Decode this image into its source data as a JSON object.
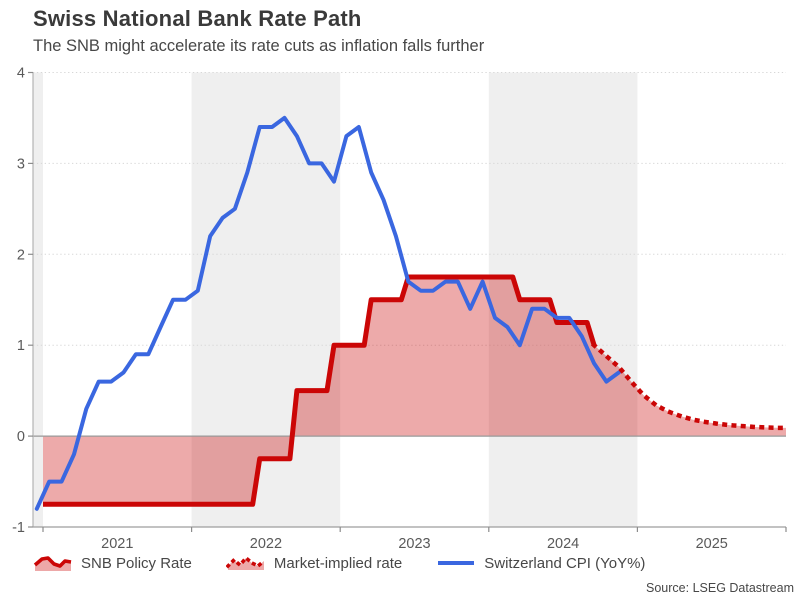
{
  "header": {
    "title": "Swiss National Bank Rate Path",
    "subtitle": "The SNB might accelerate its rate cuts as inflation falls further"
  },
  "source": "Source: LSEG Datastream",
  "colors": {
    "policy_red": "#cb0606",
    "fill_pink": "rgba(203,6,6,0.34)",
    "cpi_blue": "#3a67e0",
    "band_gray": "#efefef",
    "grid": "#d7d7d7",
    "zero_line": "#999999",
    "axis": "#b3b3b3",
    "tick": "#8c8c8c",
    "label": "#595959"
  },
  "chart_data": {
    "type": "line",
    "title": "Swiss National Bank Rate Path",
    "subtitle": "The SNB might accelerate its rate cuts as inflation falls further",
    "xlabel": "",
    "ylabel": "",
    "ylim": [
      -1,
      4
    ],
    "grid": "dotted horizontal",
    "legend_position": "bottom",
    "x_axis": {
      "labels": [
        "2021",
        "2022",
        "2023",
        "2024",
        "2025"
      ]
    },
    "y_axis": {
      "ticks": [
        4,
        3,
        2,
        1,
        0,
        -1
      ]
    },
    "shaded_bands": [
      [
        "2020-12",
        "2021-01"
      ],
      [
        "2022-01",
        "2023-01"
      ],
      [
        "2024-01",
        "2025-01"
      ]
    ],
    "series": [
      {
        "name": "SNB Policy Rate",
        "type": "step",
        "style": "solid",
        "color": "#cb0606",
        "fill_to_zero": true,
        "points": [
          [
            "2021-01",
            -0.75
          ],
          [
            "2022-06",
            -0.25
          ],
          [
            "2022-09",
            0.5
          ],
          [
            "2022-12",
            1.0
          ],
          [
            "2023-03",
            1.5
          ],
          [
            "2023-06",
            1.75
          ],
          [
            "2024-03",
            1.5
          ],
          [
            "2024-06",
            1.25
          ],
          [
            "2024-09",
            1.0
          ]
        ]
      },
      {
        "name": "Market-implied rate",
        "type": "line",
        "style": "dotted",
        "color": "#cb0606",
        "fill_to_zero": true,
        "points": [
          [
            "2024-09",
            1.0
          ],
          [
            "2024-10",
            0.88
          ],
          [
            "2024-11",
            0.76
          ],
          [
            "2024-12",
            0.6
          ],
          [
            "2025-01",
            0.45
          ],
          [
            "2025-02",
            0.34
          ],
          [
            "2025-03",
            0.27
          ],
          [
            "2025-04",
            0.22
          ],
          [
            "2025-05",
            0.18
          ],
          [
            "2025-06",
            0.155
          ],
          [
            "2025-07",
            0.135
          ],
          [
            "2025-08",
            0.12
          ],
          [
            "2025-09",
            0.11
          ],
          [
            "2025-10",
            0.1
          ],
          [
            "2025-11",
            0.095
          ],
          [
            "2025-12",
            0.09
          ]
        ]
      },
      {
        "name": "Switzerland CPI (YoY%)",
        "type": "line",
        "style": "solid",
        "color": "#3a67e0",
        "points": [
          [
            "2020-12",
            -0.8
          ],
          [
            "2021-01",
            -0.5
          ],
          [
            "2021-02",
            -0.5
          ],
          [
            "2021-03",
            -0.2
          ],
          [
            "2021-04",
            0.3
          ],
          [
            "2021-05",
            0.6
          ],
          [
            "2021-06",
            0.6
          ],
          [
            "2021-07",
            0.7
          ],
          [
            "2021-08",
            0.9
          ],
          [
            "2021-09",
            0.9
          ],
          [
            "2021-10",
            1.2
          ],
          [
            "2021-11",
            1.5
          ],
          [
            "2021-12",
            1.5
          ],
          [
            "2022-01",
            1.6
          ],
          [
            "2022-02",
            2.2
          ],
          [
            "2022-03",
            2.4
          ],
          [
            "2022-04",
            2.5
          ],
          [
            "2022-05",
            2.9
          ],
          [
            "2022-06",
            3.4
          ],
          [
            "2022-07",
            3.4
          ],
          [
            "2022-08",
            3.5
          ],
          [
            "2022-09",
            3.3
          ],
          [
            "2022-10",
            3.0
          ],
          [
            "2022-11",
            3.0
          ],
          [
            "2022-12",
            2.8
          ],
          [
            "2023-01",
            3.3
          ],
          [
            "2023-02",
            3.4
          ],
          [
            "2023-03",
            2.9
          ],
          [
            "2023-04",
            2.6
          ],
          [
            "2023-05",
            2.2
          ],
          [
            "2023-06",
            1.7
          ],
          [
            "2023-07",
            1.6
          ],
          [
            "2023-08",
            1.6
          ],
          [
            "2023-09",
            1.7
          ],
          [
            "2023-10",
            1.7
          ],
          [
            "2023-11",
            1.4
          ],
          [
            "2023-12",
            1.7
          ],
          [
            "2024-01",
            1.3
          ],
          [
            "2024-02",
            1.2
          ],
          [
            "2024-03",
            1.0
          ],
          [
            "2024-04",
            1.4
          ],
          [
            "2024-05",
            1.4
          ],
          [
            "2024-06",
            1.3
          ],
          [
            "2024-07",
            1.3
          ],
          [
            "2024-08",
            1.1
          ],
          [
            "2024-09",
            0.8
          ],
          [
            "2024-10",
            0.6
          ],
          [
            "2024-11",
            0.7
          ]
        ]
      }
    ]
  }
}
